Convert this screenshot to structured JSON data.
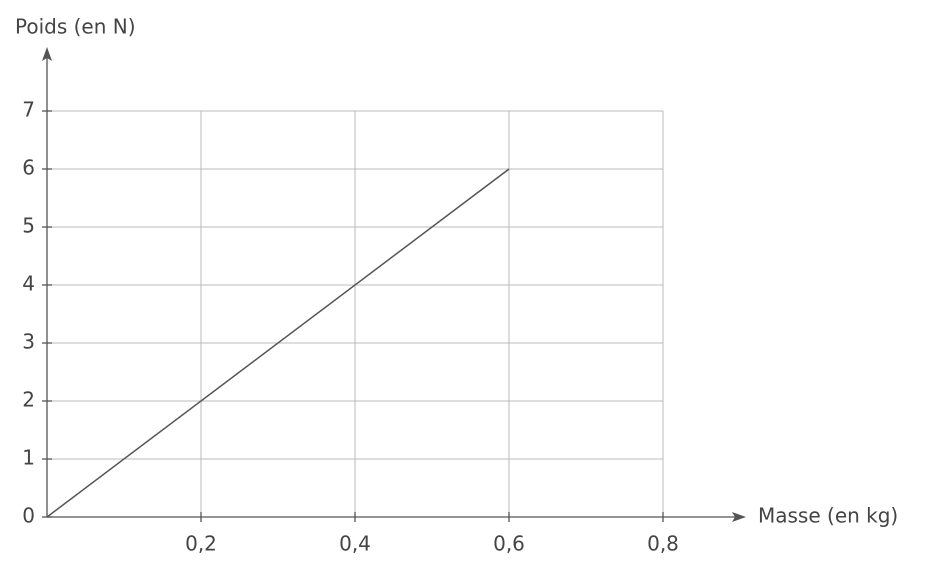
{
  "chart_data": {
    "type": "line",
    "x_label": "Masse (en kg)",
    "y_label": "Poids (en N)",
    "x": [
      0,
      0.6
    ],
    "values": [
      0,
      6
    ],
    "color": "#555555",
    "xlim": [
      0,
      0.9
    ],
    "ylim": [
      0,
      8
    ],
    "xticks": [
      {
        "value": 0.2,
        "label": "0,2"
      },
      {
        "value": 0.4,
        "label": "0,4"
      },
      {
        "value": 0.6,
        "label": "0,6"
      },
      {
        "value": 0.8,
        "label": "0,8"
      }
    ],
    "yticks": [
      0,
      1,
      2,
      3,
      4,
      5,
      6,
      7
    ],
    "grid": true
  }
}
